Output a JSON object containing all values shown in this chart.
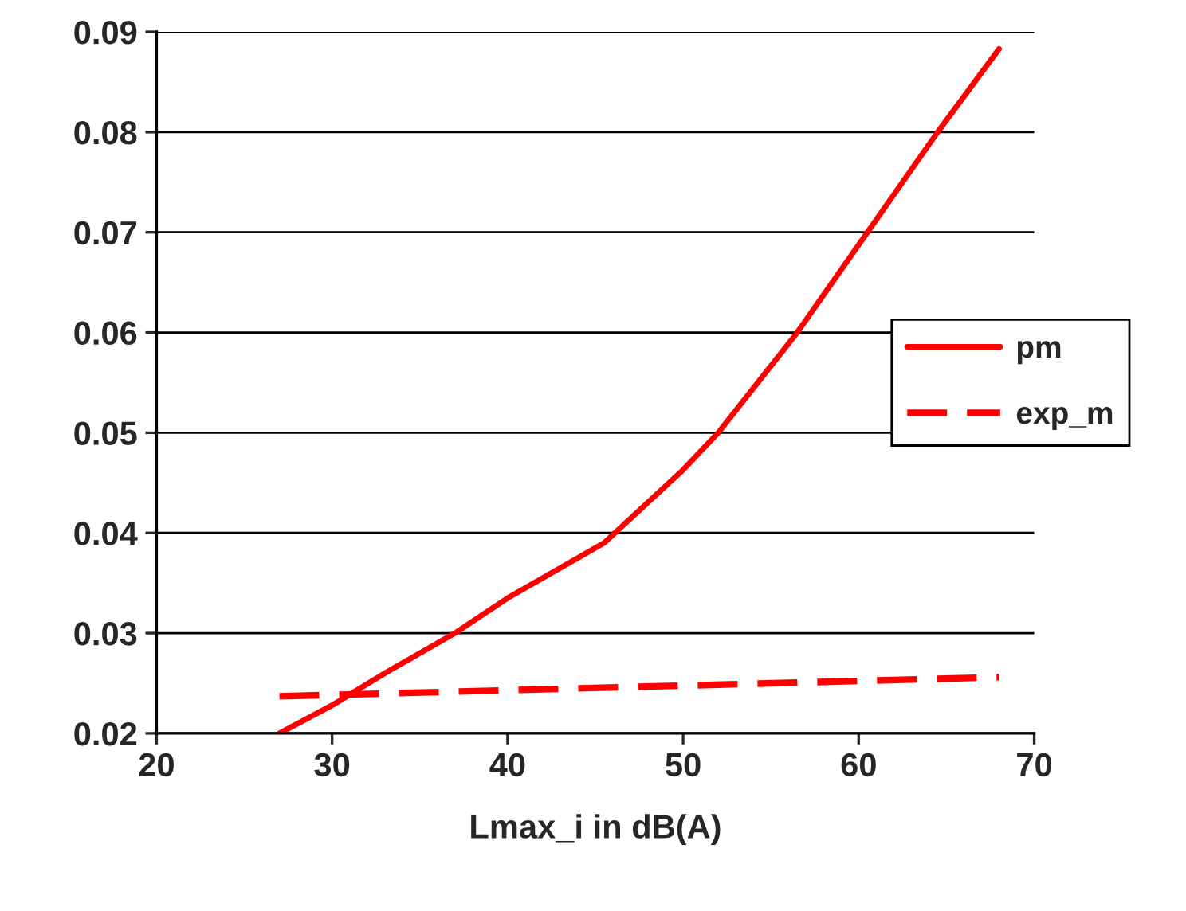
{
  "chart_data": {
    "type": "line",
    "xlabel": "Lmax_i in dB(A)",
    "xlim": [
      20,
      70
    ],
    "xticks": [
      20,
      30,
      40,
      50,
      60,
      70
    ],
    "ylim": [
      0.02,
      0.09
    ],
    "yticks": [
      0.02,
      0.03,
      0.04,
      0.05,
      0.06,
      0.07,
      0.08,
      0.09
    ],
    "grid": "y",
    "legend": "right",
    "series": [
      {
        "name": "pm",
        "color": "#ff0000",
        "line_style": "solid",
        "x": [
          27,
          30,
          33,
          37,
          40,
          45.5,
          50,
          52,
          56.5,
          60.5,
          64.5,
          68
        ],
        "values": [
          0.02,
          0.0228,
          0.026,
          0.03,
          0.0335,
          0.039,
          0.0463,
          0.05,
          0.06,
          0.07,
          0.08,
          0.0883
        ]
      },
      {
        "name": "exp_m",
        "color": "#ff0000",
        "line_style": "dashed",
        "x": [
          27,
          68
        ],
        "values": [
          0.0237,
          0.0256
        ]
      }
    ]
  }
}
